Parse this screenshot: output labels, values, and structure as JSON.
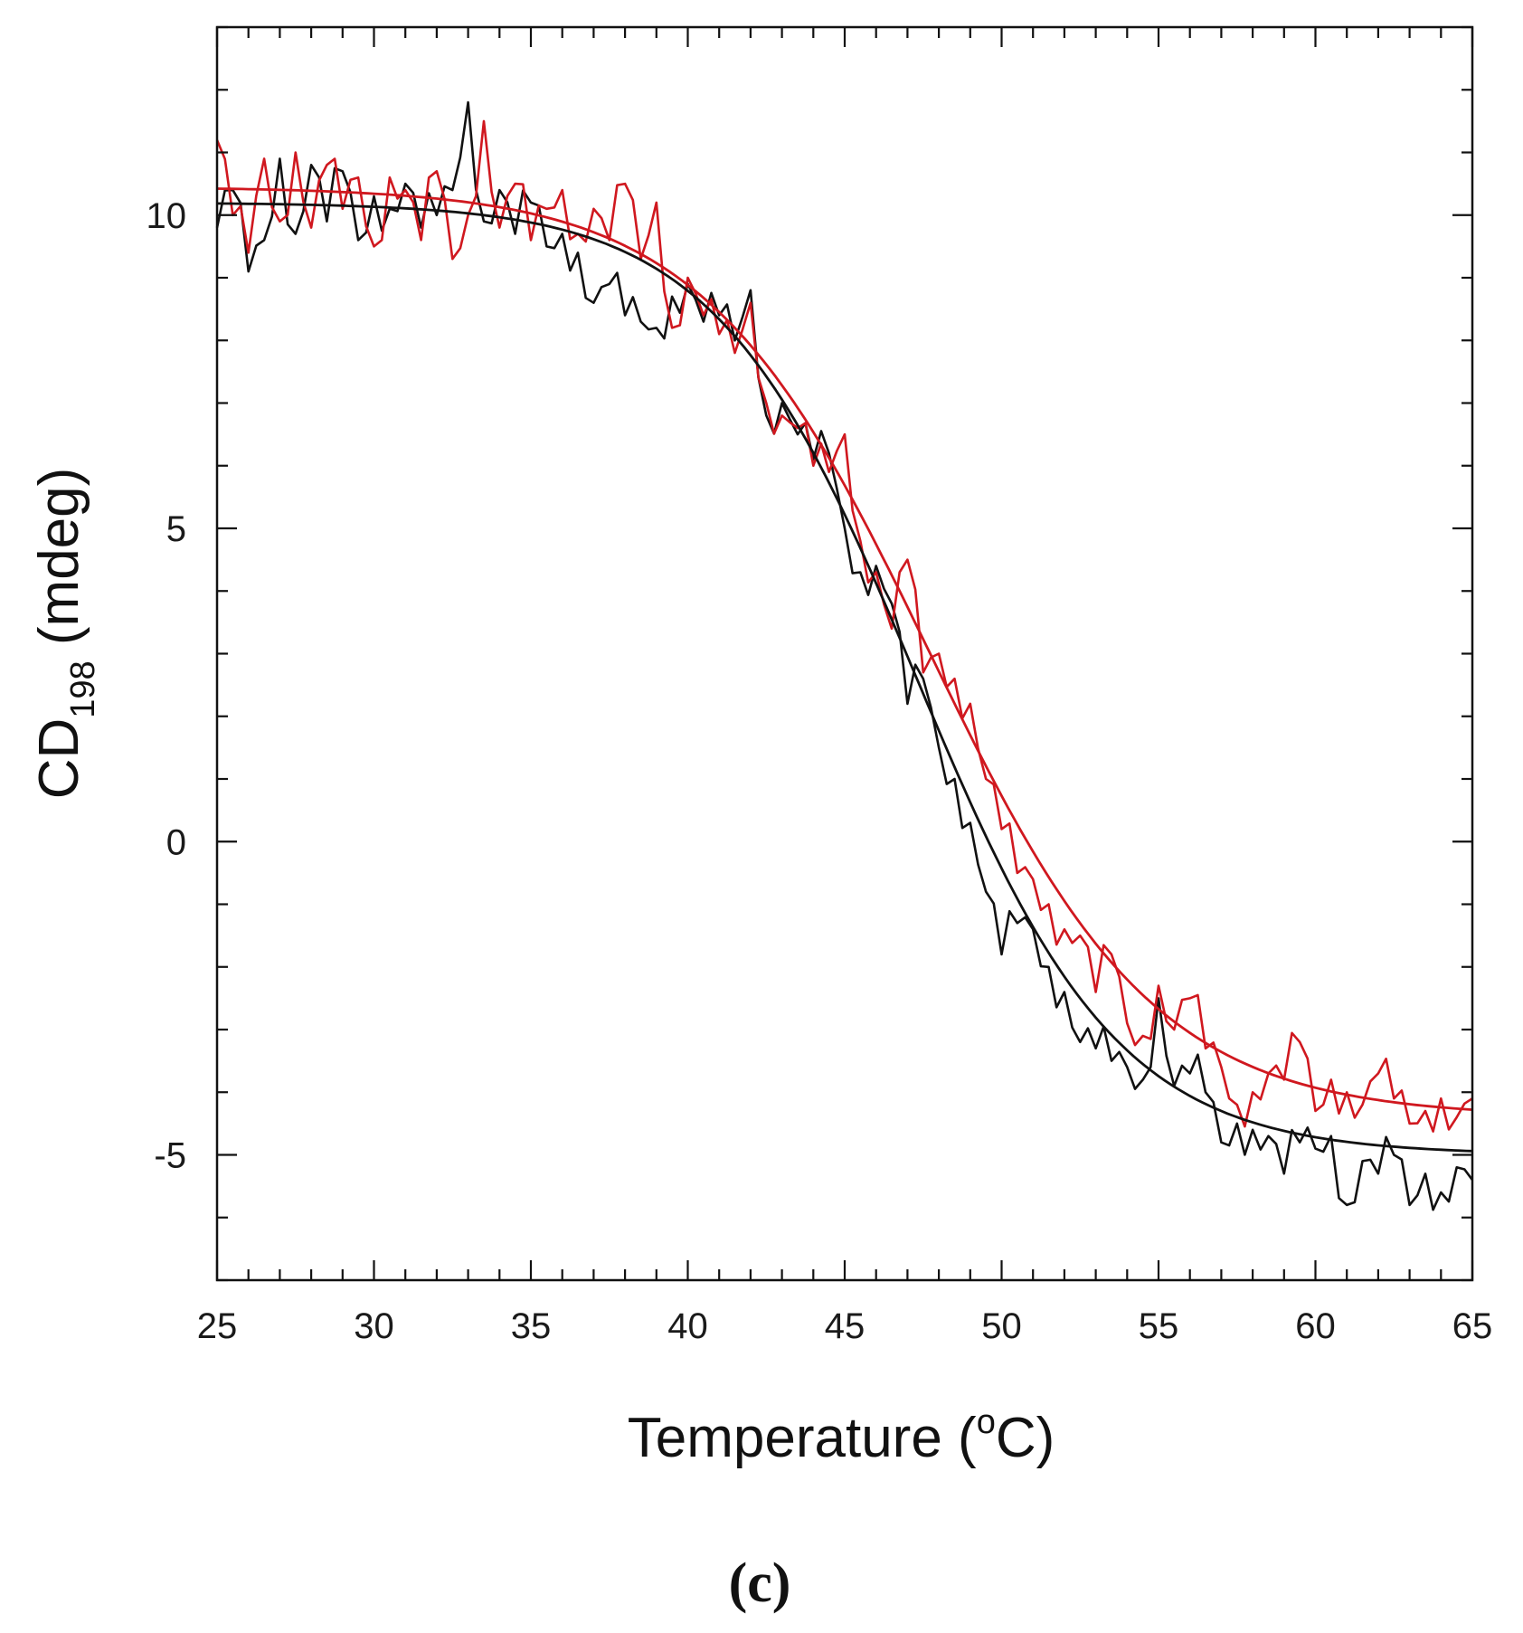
{
  "chart_data": {
    "type": "line",
    "title": "",
    "panel_label": "(c)",
    "xlabel": {
      "main": "Temperature (",
      "superscript": "o",
      "suffix": "C)"
    },
    "ylabel": {
      "main": "CD",
      "subscript": "198",
      "suffix": " (mdeg)"
    },
    "xlim": [
      25,
      65
    ],
    "ylim": [
      -7,
      13
    ],
    "x_ticks": [
      25,
      30,
      35,
      40,
      45,
      50,
      55,
      60,
      65
    ],
    "x_tick_labels": [
      "25",
      "30",
      "35",
      "40",
      "45",
      "50",
      "55",
      "60",
      "65"
    ],
    "y_ticks": [
      -5,
      0,
      5,
      10
    ],
    "y_tick_labels": [
      "-5",
      "0",
      "5",
      "10"
    ],
    "x_minor_step": 1,
    "y_minor_step": 1,
    "grid": false,
    "colors": {
      "black": "#111111",
      "red": "#d0181f",
      "axis": "#111111"
    },
    "series": [
      {
        "name": "black-data",
        "color": "#111111",
        "style": "noisy",
        "x": [
          25,
          25.5,
          26,
          26.5,
          27,
          27.5,
          28,
          28.5,
          29,
          29.5,
          30,
          30.5,
          31,
          31.5,
          32,
          32.5,
          33,
          33.5,
          34,
          34.5,
          35,
          35.5,
          36,
          36.5,
          37,
          37.5,
          38,
          38.5,
          39,
          39.5,
          40,
          40.5,
          41,
          41.5,
          42,
          42.5,
          43,
          43.5,
          44,
          44.5,
          45,
          45.5,
          46,
          46.5,
          47,
          47.5,
          48,
          48.5,
          49,
          49.5,
          50,
          50.5,
          51,
          51.5,
          52,
          52.5,
          53,
          53.5,
          54,
          54.5,
          55,
          55.5,
          56,
          56.5,
          57,
          57.5,
          58,
          58.5,
          59,
          59.5,
          60,
          60.5,
          61,
          61.5,
          62,
          62.5,
          63,
          63.5,
          64,
          64.5,
          65
        ],
        "y": [
          9.8,
          10.4,
          9.1,
          9.6,
          10.9,
          9.7,
          10.8,
          9.9,
          10.7,
          9.6,
          10.3,
          10.1,
          10.5,
          9.8,
          10.0,
          10.4,
          11.8,
          9.9,
          10.4,
          9.7,
          10.2,
          9.5,
          9.7,
          9.4,
          8.6,
          8.9,
          8.4,
          8.3,
          8.2,
          8.7,
          8.9,
          8.3,
          8.4,
          8.0,
          8.8,
          6.8,
          7.0,
          6.5,
          6.1,
          6.2,
          5.0,
          4.3,
          4.4,
          3.8,
          2.2,
          2.6,
          1.5,
          1.0,
          0.3,
          -0.8,
          -1.8,
          -1.3,
          -1.4,
          -2.0,
          -2.4,
          -3.2,
          -3.3,
          -3.5,
          -3.6,
          -3.8,
          -2.5,
          -3.9,
          -3.7,
          -4.0,
          -4.8,
          -4.5,
          -4.6,
          -4.7,
          -5.3,
          -4.8,
          -4.9,
          -4.7,
          -5.8,
          -5.1,
          -5.3,
          -5.0,
          -5.8,
          -5.3,
          -5.6,
          -5.2,
          -5.4
        ]
      },
      {
        "name": "red-data",
        "color": "#d0181f",
        "style": "noisy",
        "x": [
          25,
          25.5,
          26,
          26.5,
          27,
          27.5,
          28,
          28.5,
          29,
          29.5,
          30,
          30.5,
          31,
          31.5,
          32,
          32.5,
          33,
          33.5,
          34,
          34.5,
          35,
          35.5,
          36,
          36.5,
          37,
          37.5,
          38,
          38.5,
          39,
          39.5,
          40,
          40.5,
          41,
          41.5,
          42,
          42.5,
          43,
          43.5,
          44,
          44.5,
          45,
          45.5,
          46,
          46.5,
          47,
          47.5,
          48,
          48.5,
          49,
          49.5,
          50,
          50.5,
          51,
          51.5,
          52,
          52.5,
          53,
          53.5,
          54,
          54.5,
          55,
          55.5,
          56,
          56.5,
          57,
          57.5,
          58,
          58.5,
          59,
          59.5,
          60,
          60.5,
          61,
          61.5,
          62,
          62.5,
          63,
          63.5,
          64,
          64.5,
          65
        ],
        "y": [
          11.2,
          10.0,
          9.4,
          10.9,
          9.9,
          11.0,
          9.8,
          10.8,
          10.1,
          10.6,
          9.5,
          10.6,
          10.4,
          9.6,
          10.7,
          9.3,
          10.0,
          11.5,
          9.8,
          10.5,
          9.6,
          10.1,
          10.4,
          9.7,
          10.1,
          9.6,
          10.5,
          9.3,
          10.2,
          8.2,
          9.0,
          8.4,
          8.1,
          7.8,
          8.6,
          7.0,
          6.8,
          6.6,
          6.0,
          5.9,
          6.5,
          4.8,
          4.3,
          3.4,
          4.5,
          2.7,
          3.0,
          2.6,
          2.2,
          1.0,
          0.2,
          -0.5,
          -0.6,
          -1.0,
          -1.4,
          -1.5,
          -2.4,
          -1.8,
          -2.9,
          -3.1,
          -2.3,
          -3.0,
          -2.5,
          -3.3,
          -3.6,
          -4.2,
          -4.0,
          -3.7,
          -3.8,
          -3.2,
          -4.3,
          -3.8,
          -4.0,
          -4.2,
          -3.7,
          -4.1,
          -4.5,
          -4.3,
          -4.1,
          -4.4,
          -4.1
        ]
      },
      {
        "name": "black-fit",
        "color": "#111111",
        "style": "smooth",
        "model": "sigmoid",
        "params": {
          "top": 10.2,
          "bottom": -5.0,
          "midpoint": 47.3,
          "width": 3.2
        }
      },
      {
        "name": "red-fit",
        "color": "#d0181f",
        "style": "smooth",
        "model": "sigmoid",
        "params": {
          "top": 10.45,
          "bottom": -4.4,
          "midpoint": 47.7,
          "width": 3.6
        }
      }
    ]
  }
}
